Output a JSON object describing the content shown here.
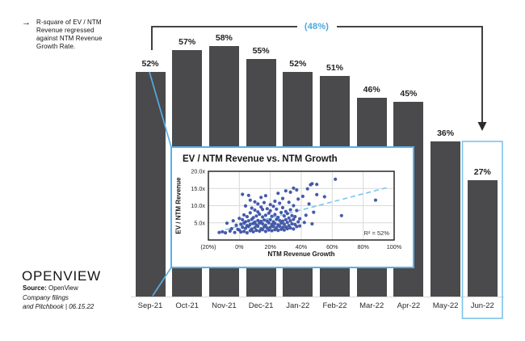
{
  "annotation": {
    "lines": [
      "R-square of EV / NTM",
      "Revenue regressed",
      "against NTM Revenue",
      "Growth Rate."
    ]
  },
  "logo_text": "OPENVIEW",
  "source": {
    "label": "Source:",
    "value": " OpenView",
    "line2": "Company filings",
    "line3": "and Pitchbook | 06.15.22"
  },
  "colors": {
    "bar_gray": "#4a4a4c",
    "accent_blue": "#4aa7e0",
    "inset_border_blue": "#58b0e5",
    "highlight_box_blue": "#7cc3ea",
    "point_blue": "#3c52a5",
    "trend_blue": "#7cc5ec",
    "bracket_dark": "#2b2b2b",
    "gridline_gray": "#d9d9d9"
  },
  "chart_data": [
    {
      "type": "bar",
      "categories": [
        "Sep-21",
        "Oct-21",
        "Nov-21",
        "Dec-21",
        "Jan-22",
        "Feb-22",
        "Mar-22",
        "Apr-22",
        "May-22",
        "Jun-22"
      ],
      "values": [
        52,
        57,
        58,
        55,
        52,
        51,
        46,
        45,
        36,
        27
      ],
      "value_suffix": "%",
      "change_label": "(48%)",
      "highlighted_category": "Jun-22",
      "ylim": [
        0,
        65
      ],
      "grid": false,
      "note": "R-square of EV / NTM Revenue regressed against NTM Revenue Growth Rate."
    },
    {
      "type": "scatter",
      "title": "EV / NTM Revenue vs. NTM Growth",
      "xlabel": "NTM Revenue Growth",
      "ylabel": "EV / NTM Revenue",
      "xlim": [
        -20,
        100
      ],
      "ylim": [
        0,
        20
      ],
      "x_ticks": [
        "(20%)",
        "0%",
        "20%",
        "40%",
        "60%",
        "80%",
        "100%"
      ],
      "y_ticks": [
        "5.0x",
        "10.0x",
        "15.0x",
        "20.0x"
      ],
      "annotation": "R² = 52%",
      "trend_line": {
        "style": "dashed",
        "x1": -9,
        "y1": 3.0,
        "x2": 95,
        "y2": 15.2
      },
      "points": [
        [
          -13,
          2.2
        ],
        [
          -11,
          2.4
        ],
        [
          -9,
          2.1
        ],
        [
          -8,
          4.9
        ],
        [
          -6,
          2.6
        ],
        [
          -5,
          3.3
        ],
        [
          -4,
          5.6
        ],
        [
          -3,
          2.2
        ],
        [
          -2,
          4.3
        ],
        [
          -1,
          3.1
        ],
        [
          0,
          2.9
        ],
        [
          0,
          6.3
        ],
        [
          1,
          4.6
        ],
        [
          1,
          2.3
        ],
        [
          2,
          3.7
        ],
        [
          2,
          5.9
        ],
        [
          2,
          13.3
        ],
        [
          3,
          2.5
        ],
        [
          3,
          5.0
        ],
        [
          3,
          7.3
        ],
        [
          4,
          3.4
        ],
        [
          4,
          5.3
        ],
        [
          4,
          9.9
        ],
        [
          5,
          2.1
        ],
        [
          5,
          4.2
        ],
        [
          5,
          6.8
        ],
        [
          6,
          3.9
        ],
        [
          6,
          5.6
        ],
        [
          6,
          13.0
        ],
        [
          7,
          2.7
        ],
        [
          7,
          4.5
        ],
        [
          7,
          7.9
        ],
        [
          7,
          11.6
        ],
        [
          8,
          3.2
        ],
        [
          8,
          6.0
        ],
        [
          8,
          9.3
        ],
        [
          9,
          2.4
        ],
        [
          9,
          4.8
        ],
        [
          9,
          6.5
        ],
        [
          10,
          3.6
        ],
        [
          10,
          5.2
        ],
        [
          10,
          8.7
        ],
        [
          10,
          11.1
        ],
        [
          11,
          2.8
        ],
        [
          11,
          4.4
        ],
        [
          11,
          7.0
        ],
        [
          12,
          4.0
        ],
        [
          12,
          5.7
        ],
        [
          12,
          8.2
        ],
        [
          12,
          10.5
        ],
        [
          13,
          2.6
        ],
        [
          13,
          4.9
        ],
        [
          13,
          7.5
        ],
        [
          14,
          3.3
        ],
        [
          14,
          5.4
        ],
        [
          14,
          9.6
        ],
        [
          14,
          12.4
        ],
        [
          15,
          3.0
        ],
        [
          15,
          4.7
        ],
        [
          15,
          6.7
        ],
        [
          15,
          8.9
        ],
        [
          16,
          3.8
        ],
        [
          16,
          5.8
        ],
        [
          16,
          10.9
        ],
        [
          17,
          2.5
        ],
        [
          17,
          4.3
        ],
        [
          17,
          7.2
        ],
        [
          17,
          12.9
        ],
        [
          18,
          3.5
        ],
        [
          18,
          5.5
        ],
        [
          18,
          9.1
        ],
        [
          19,
          2.9
        ],
        [
          19,
          5.0
        ],
        [
          19,
          7.8
        ],
        [
          20,
          3.7
        ],
        [
          20,
          5.9
        ],
        [
          20,
          8.5
        ],
        [
          20,
          10.3
        ],
        [
          21,
          2.7
        ],
        [
          21,
          4.5
        ],
        [
          21,
          6.9
        ],
        [
          22,
          3.9
        ],
        [
          22,
          5.3
        ],
        [
          22,
          9.8
        ],
        [
          23,
          3.0
        ],
        [
          23,
          4.8
        ],
        [
          23,
          7.4
        ],
        [
          23,
          11.3
        ],
        [
          24,
          3.6
        ],
        [
          24,
          6.0
        ],
        [
          24,
          9.0
        ],
        [
          25,
          2.8
        ],
        [
          25,
          4.4
        ],
        [
          25,
          6.6
        ],
        [
          25,
          13.6
        ],
        [
          26,
          4.0
        ],
        [
          26,
          5.7
        ],
        [
          26,
          10.7
        ],
        [
          27,
          3.1
        ],
        [
          27,
          4.9
        ],
        [
          27,
          8.0
        ],
        [
          28,
          3.7
        ],
        [
          28,
          5.5
        ],
        [
          28,
          9.4
        ],
        [
          28,
          12.1
        ],
        [
          29,
          2.9
        ],
        [
          29,
          4.6
        ],
        [
          29,
          7.0
        ],
        [
          30,
          3.8
        ],
        [
          30,
          5.9
        ],
        [
          30,
          8.3
        ],
        [
          30,
          14.3
        ],
        [
          31,
          3.3
        ],
        [
          31,
          5.1
        ],
        [
          31,
          7.7
        ],
        [
          32,
          4.2
        ],
        [
          32,
          6.4
        ],
        [
          32,
          11.0
        ],
        [
          33,
          3.5
        ],
        [
          33,
          5.6
        ],
        [
          33,
          8.8
        ],
        [
          33,
          13.9
        ],
        [
          34,
          4.7
        ],
        [
          34,
          7.1
        ],
        [
          35,
          3.2
        ],
        [
          35,
          6.0
        ],
        [
          35,
          10.0
        ],
        [
          35,
          15.1
        ],
        [
          36,
          4.5
        ],
        [
          36,
          6.8
        ],
        [
          37,
          3.9
        ],
        [
          37,
          8.6
        ],
        [
          37,
          14.6
        ],
        [
          38,
          5.3
        ],
        [
          38,
          11.9
        ],
        [
          39,
          4.1
        ],
        [
          39,
          6.2
        ],
        [
          41,
          12.7
        ],
        [
          42,
          5.1
        ],
        [
          43,
          7.2
        ],
        [
          44,
          14.9
        ],
        [
          45,
          10.5
        ],
        [
          46,
          16.1
        ],
        [
          47,
          16.4
        ],
        [
          47,
          4.7
        ],
        [
          48,
          8.1
        ],
        [
          50,
          16.2
        ],
        [
          50,
          13.2
        ],
        [
          55,
          12.6
        ],
        [
          62,
          17.7
        ],
        [
          66,
          7.1
        ],
        [
          88,
          11.6
        ]
      ]
    }
  ]
}
